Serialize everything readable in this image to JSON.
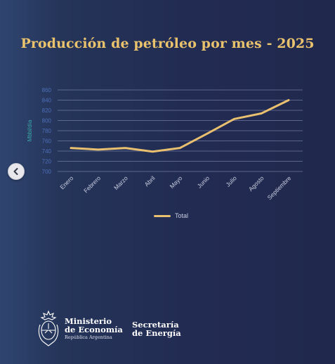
{
  "title": "Producción de petróleo por mes - 2025",
  "chart_data": {
    "type": "line",
    "categories": [
      "Enero",
      "Febrero",
      "Marzo",
      "Abril",
      "Mayo",
      "Junio",
      "Julio",
      "Agosto",
      "Septiembre"
    ],
    "series": [
      {
        "name": "Total",
        "values": [
          746,
          743,
          746,
          739,
          746,
          774,
          803,
          814,
          840
        ]
      }
    ],
    "ylabel": "Mbbl/día",
    "xlabel": "",
    "ylim": [
      700,
      860
    ],
    "yticks": [
      700,
      720,
      740,
      760,
      780,
      800,
      820,
      840,
      860
    ],
    "grid": true,
    "legend": "bottom",
    "colors": {
      "line": "#e8c06f",
      "grid": "#8a93b8",
      "tick_text": "#4e6fb8",
      "ylabel": "#3aa6a8",
      "x_tick_text": "#c9cee0"
    }
  },
  "nav": {
    "icon": "chevron-left-icon"
  },
  "footer": {
    "ministry_line1": "Ministerio",
    "ministry_line2": "de Economía",
    "ministry_sub": "República Argentina",
    "secretary_line1": "Secretaría",
    "secretary_line2": "de Energía",
    "seal_icon": "national-seal-icon"
  }
}
